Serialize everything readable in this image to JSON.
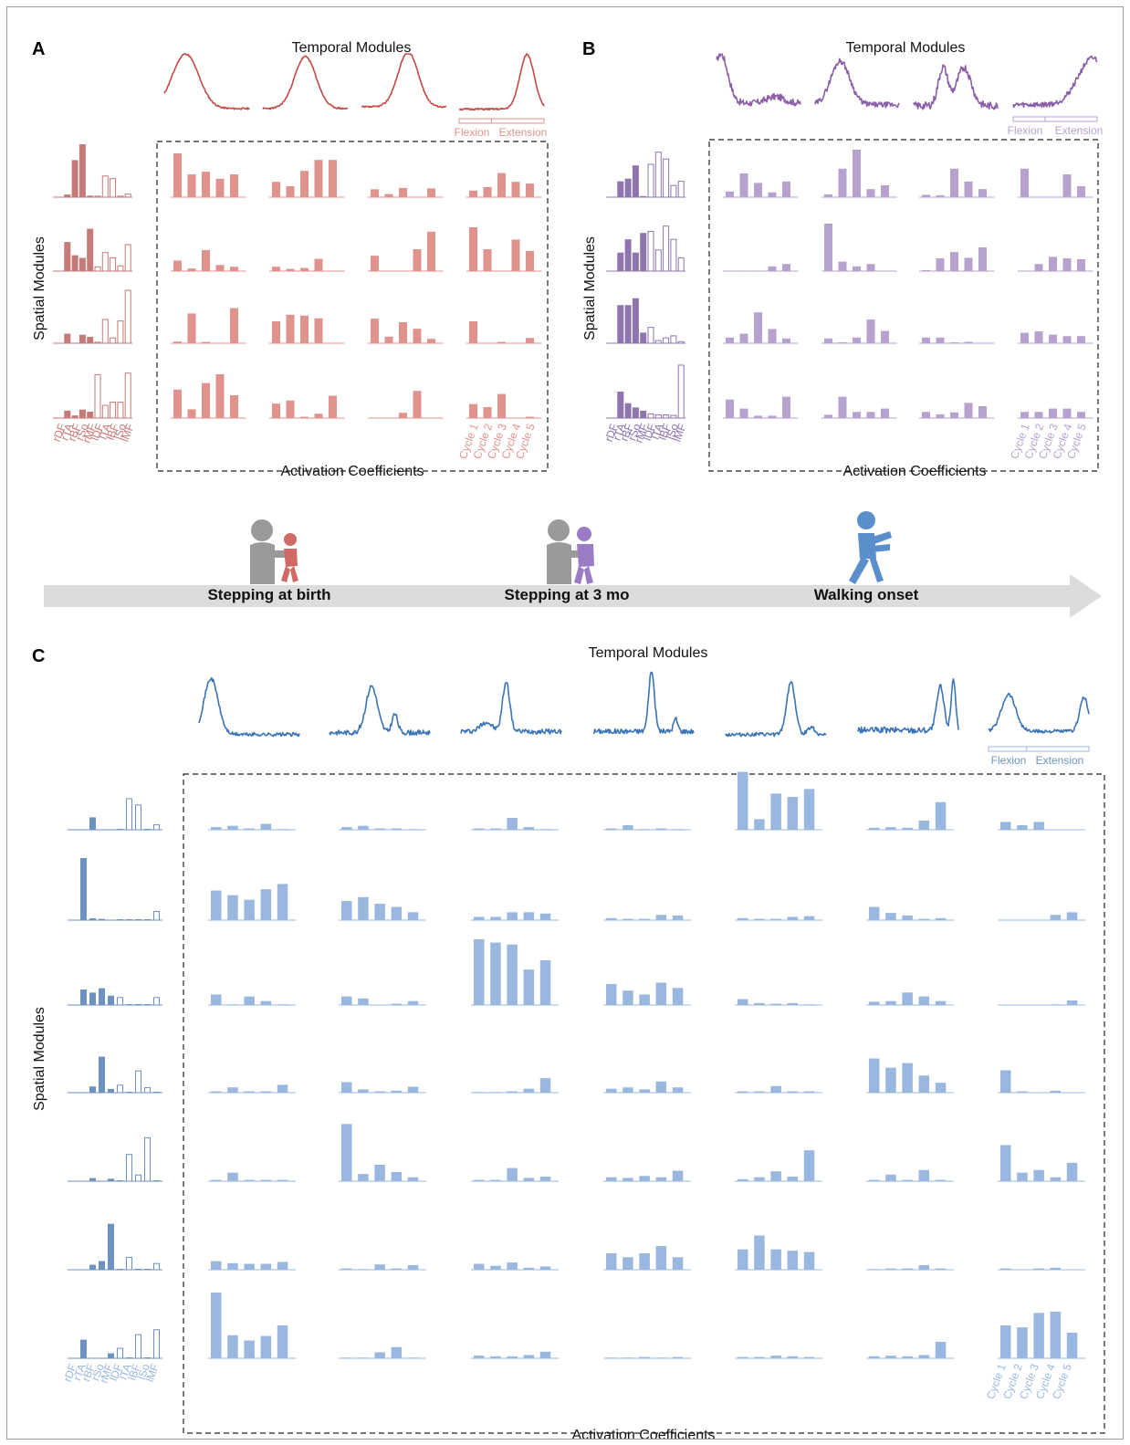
{
  "colors": {
    "red_bar": "#e0928d",
    "red_dark": "#c57a78",
    "red_line": "#c44a46",
    "purple_bar": "#b7a2cf",
    "purple_dark": "#8f75ad",
    "purple_line": "#8a5fa8",
    "blue_bar": "#9ab8df",
    "blue_dark": "#6d92c0",
    "blue_line": "#3a74b4",
    "arrow": "#dcdcdc",
    "person_gray": "#9a9a9a",
    "infant_red": "#d06a64",
    "infant_purple": "#9a7cc4",
    "walker_blue": "#5b8fcb"
  },
  "panels": [
    {
      "label": "A",
      "temporal_title": "Temporal Modules",
      "axis_left": "Spatial Modules",
      "axis_bottom": "Activation Coefficients",
      "flexion": "Flexion",
      "extension": "Extension",
      "muscles": [
        "rDF",
        "rTA",
        "rBF",
        "rSo",
        "rMF",
        "lDF",
        "lTA",
        "lBF",
        "lSo",
        "lMF"
      ],
      "cycles": [
        "Cycle 1",
        "Cycle 2",
        "Cycle 3",
        "Cycle 4",
        "Cycle 5"
      ],
      "spatial": [
        [
          0,
          0.05,
          0.7,
          1.0,
          0.03,
          0.02,
          0.4,
          0.35,
          0.02,
          0.06
        ],
        [
          0,
          0.55,
          0.3,
          0.25,
          0.8,
          0.08,
          0.35,
          0.25,
          0.1,
          0.5
        ],
        [
          0,
          0.18,
          0,
          0.16,
          0.12,
          0.02,
          0.45,
          0.1,
          0.42,
          1.0
        ],
        [
          0,
          0.14,
          0.05,
          0.16,
          0.12,
          0.82,
          0.24,
          0.3,
          0.3,
          0.85
        ]
      ],
      "coefficients": [
        [
          [
            1.0,
            0.52,
            0.58,
            0.42,
            0.52
          ],
          [
            0.35,
            0.25,
            0.6,
            0.85,
            0.85
          ],
          [
            0.18,
            0.07,
            0.21,
            0,
            0.2
          ],
          [
            0.15,
            0.23,
            0.55,
            0.35,
            0.31
          ]
        ],
        [
          [
            0.24,
            0.06,
            0.48,
            0.14,
            0.1
          ],
          [
            0.1,
            0.05,
            0.07,
            0.28,
            0
          ],
          [
            0.35,
            0,
            0,
            0.5,
            0.9
          ],
          [
            1.0,
            0.5,
            0,
            0.72,
            0.46
          ]
        ],
        [
          [
            0.04,
            0.68,
            0.03,
            0,
            0.8
          ],
          [
            0.5,
            0.65,
            0.63,
            0.57,
            0
          ],
          [
            0.56,
            0.15,
            0.48,
            0.33,
            0.1
          ],
          [
            0.5,
            0,
            0.03,
            0,
            0.12
          ]
        ],
        [
          [
            0.65,
            0.2,
            0.8,
            1.0,
            0.52
          ],
          [
            0.33,
            0.4,
            0.03,
            0.1,
            0.51
          ],
          [
            0,
            0.01,
            0.12,
            0.62,
            0
          ],
          [
            0.32,
            0.25,
            0.55,
            0,
            0.03
          ]
        ]
      ]
    },
    {
      "label": "B",
      "temporal_title": "Temporal Modules",
      "axis_left": "Spatial Modules",
      "axis_bottom": "Activation Coefficients",
      "flexion": "Flexion",
      "extension": "Extension",
      "muscles": [
        "rDF",
        "rTA",
        "rBF",
        "rSo",
        "rMF",
        "lDF",
        "lTA",
        "lBF",
        "lSo",
        "lMF"
      ],
      "cycles": [
        "Cycle 1",
        "Cycle 2",
        "Cycle 3",
        "Cycle 4",
        "Cycle 5"
      ],
      "spatial": [
        [
          0,
          0.3,
          0.35,
          0.6,
          0.02,
          0.62,
          0.85,
          0.72,
          0.22,
          0.3
        ],
        [
          0,
          0.35,
          0.6,
          0.35,
          0.72,
          0.75,
          0.4,
          0.85,
          0.6,
          0.25
        ],
        [
          0,
          0.72,
          0.72,
          0.85,
          0.2,
          0.3,
          0.05,
          0.1,
          0.14,
          0.03
        ],
        [
          0,
          0.5,
          0.28,
          0.2,
          0.14,
          0.08,
          0.06,
          0.06,
          0.05,
          1.0
        ]
      ],
      "coefficients": [
        [
          [
            0.12,
            0.5,
            0.3,
            0.1,
            0.33
          ],
          [
            0.06,
            0.6,
            1.0,
            0.17,
            0.25
          ],
          [
            0.05,
            0.04,
            0.6,
            0.33,
            0.17
          ],
          [
            0.6,
            0,
            0,
            0.48,
            0.23
          ]
        ],
        [
          [
            0,
            0.01,
            0.01,
            0.1,
            0.15
          ],
          [
            1.0,
            0.2,
            0.1,
            0.15,
            0
          ],
          [
            0.02,
            0.27,
            0.4,
            0.28,
            0.5
          ],
          [
            0.01,
            0.15,
            0.3,
            0.27,
            0.25
          ]
        ],
        [
          [
            0.12,
            0.2,
            0.65,
            0.3,
            0.1
          ],
          [
            0.1,
            0.02,
            0.12,
            0.5,
            0.26
          ],
          [
            0.12,
            0.12,
            0.02,
            0.03,
            0
          ],
          [
            0.22,
            0.25,
            0.18,
            0.15,
            0.15
          ]
        ],
        [
          [
            0.39,
            0.2,
            0.05,
            0.05,
            0.45
          ],
          [
            0.07,
            0.45,
            0.13,
            0.13,
            0.2
          ],
          [
            0.13,
            0.08,
            0.12,
            0.32,
            0.25
          ],
          [
            0.13,
            0.13,
            0.2,
            0.2,
            0.13
          ]
        ]
      ]
    },
    {
      "label": "C",
      "temporal_title": "Temporal Modules",
      "axis_left": "Spatial Modules",
      "axis_bottom": "Activation Coefficients",
      "flexion": "Flexion",
      "extension": "Extension",
      "muscles": [
        "rDF",
        "rTA",
        "rBF",
        "rSo",
        "rMF",
        "lDF",
        "lTA",
        "lBF",
        "lSo",
        "lMF"
      ],
      "cycles": [
        "Cycle 1",
        "Cycle 2",
        "Cycle 3",
        "Cycle 4",
        "Cycle 5"
      ],
      "spatial": [
        [
          0,
          0,
          0.2,
          0,
          0,
          0,
          0.5,
          0.4,
          0,
          0.08
        ],
        [
          0,
          1.0,
          0.03,
          0.02,
          0,
          0,
          0,
          0,
          0,
          0.14
        ],
        [
          0,
          0.25,
          0.2,
          0.27,
          0.15,
          0.12,
          0,
          0,
          0,
          0.12
        ],
        [
          0,
          0,
          0.1,
          0.58,
          0.06,
          0.12,
          0,
          0.35,
          0.08,
          0
        ],
        [
          0,
          0,
          0.05,
          0,
          0.04,
          0,
          0.43,
          0.1,
          0.7,
          0
        ],
        [
          0,
          0,
          0.08,
          0.14,
          0.74,
          0,
          0.2,
          0,
          0,
          0.1
        ],
        [
          0,
          0.3,
          0,
          0,
          0.08,
          0.16,
          0,
          0.38,
          0,
          0.46
        ]
      ],
      "coefficients": [
        [
          [
            0.04,
            0.06,
            0.02,
            0.09,
            0.01
          ],
          [
            0.04,
            0.06,
            0.02,
            0.02,
            0.01
          ],
          [
            0.02,
            0.02,
            0.18,
            0.04,
            0.01
          ],
          [
            0.02,
            0.07,
            0.01,
            0.02,
            0.01
          ],
          [
            0.88,
            0.16,
            0.55,
            0.5,
            0.62
          ],
          [
            0.03,
            0.04,
            0.03,
            0.14,
            0.42
          ]
        ],
        [
          [
            0.45,
            0.38,
            0.31,
            0.47,
            0.55
          ],
          [
            0.29,
            0.35,
            0.25,
            0.2,
            0.12
          ],
          [
            0.05,
            0.05,
            0.12,
            0.12,
            0.1
          ],
          [
            0.03,
            0.02,
            0.02,
            0.08,
            0.07
          ],
          [
            0.03,
            0.02,
            0.02,
            0.05,
            0.06
          ],
          [
            0.2,
            0.11,
            0.07,
            0.02,
            0.03
          ]
        ],
        [
          [
            0.16,
            0.01,
            0.13,
            0.06,
            0.01
          ],
          [
            0.13,
            0.1,
            0,
            0.02,
            0.06
          ],
          [
            1.0,
            0.95,
            0.92,
            0.54,
            0.68
          ],
          [
            0.32,
            0.22,
            0.16,
            0.34,
            0.26
          ],
          [
            0.09,
            0.03,
            0.02,
            0.03,
            0.01
          ],
          [
            0.05,
            0.06,
            0.19,
            0.13,
            0.06
          ]
        ],
        [
          [
            0.02,
            0.08,
            0.02,
            0.02,
            0.12
          ],
          [
            0.16,
            0.05,
            0.02,
            0.03,
            0.09
          ],
          [
            0.01,
            0.01,
            0.02,
            0.06,
            0.22
          ],
          [
            0.06,
            0.08,
            0.05,
            0.17,
            0.08
          ],
          [
            0.02,
            0.02,
            0.1,
            0.02,
            0.02
          ],
          [
            0.52,
            0.38,
            0.45,
            0.26,
            0.15
          ]
        ],
        [
          [
            0.02,
            0.13,
            0.02,
            0.02,
            0.02
          ],
          [
            0.87,
            0.11,
            0.25,
            0.14,
            0.06
          ],
          [
            0.02,
            0.02,
            0.2,
            0.05,
            0.07
          ],
          [
            0.06,
            0.05,
            0.08,
            0.06,
            0.16
          ],
          [
            0.03,
            0.06,
            0.15,
            0.07,
            0.47
          ],
          [
            0.02,
            0.1,
            0.02,
            0.17,
            0.02
          ]
        ],
        [
          [
            0.13,
            0.1,
            0.09,
            0.09,
            0.12
          ],
          [
            0.02,
            0.01,
            0.08,
            0.02,
            0.07
          ],
          [
            0.09,
            0.06,
            0.11,
            0.03,
            0.05
          ],
          [
            0.25,
            0.19,
            0.25,
            0.36,
            0.19
          ],
          [
            0.31,
            0.52,
            0.31,
            0.29,
            0.27
          ],
          [
            0.01,
            0.02,
            0.02,
            0.07,
            0.02
          ]
        ],
        [
          [
            1.0,
            0.35,
            0.27,
            0.34,
            0.5
          ],
          [
            0.01,
            0.01,
            0.09,
            0.17,
            0.01
          ],
          [
            0.04,
            0.03,
            0.03,
            0.05,
            0.1
          ],
          [
            0.01,
            0.01,
            0.02,
            0.01,
            0.02
          ],
          [
            0.02,
            0.02,
            0.04,
            0.03,
            0.02
          ],
          [
            0.03,
            0.04,
            0.03,
            0.05,
            0.25
          ]
        ]
      ]
    }
  ],
  "timeline": {
    "stage1": "Stepping at birth",
    "stage2": "Stepping at 3 mo",
    "stage3": "Walking onset"
  }
}
